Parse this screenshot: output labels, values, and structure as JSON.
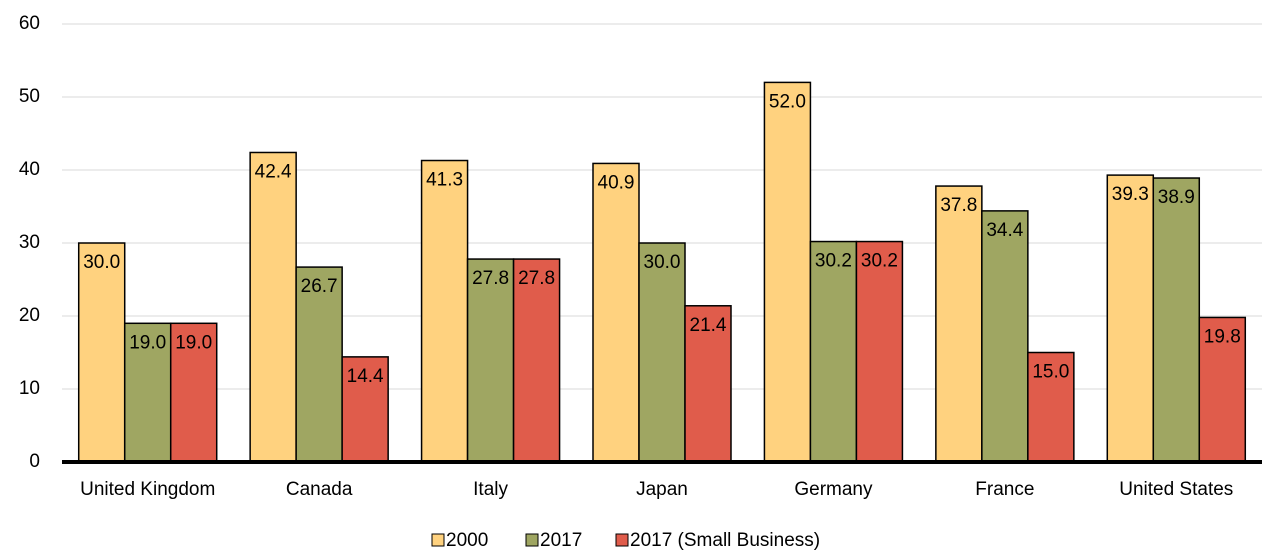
{
  "chart_data": {
    "type": "bar",
    "categories": [
      "United Kingdom",
      "Canada",
      "Italy",
      "Japan",
      "Germany",
      "France",
      "United States"
    ],
    "series": [
      {
        "name": "2000",
        "color": "#ffd27f",
        "values": [
          30.0,
          42.4,
          41.3,
          40.9,
          52.0,
          37.8,
          39.3
        ],
        "value_labels": [
          "30.0",
          "42.4",
          "41.3",
          "40.9",
          "52.0",
          "37.8",
          "39.3"
        ]
      },
      {
        "name": "2017",
        "color": "#9fa662",
        "values": [
          19.0,
          26.7,
          27.8,
          30.0,
          30.2,
          34.4,
          38.9
        ],
        "value_labels": [
          "19.0",
          "26.7",
          "27.8",
          "30.0",
          "30.2",
          "34.4",
          "38.9"
        ]
      },
      {
        "name": "2017 (Small Business)",
        "color": "#e05c4b",
        "values": [
          19.0,
          14.4,
          27.8,
          21.4,
          30.2,
          15.0,
          19.8
        ],
        "value_labels": [
          "19.0",
          "14.4",
          "27.8",
          "21.4",
          "30.2",
          "15.0",
          "19.8"
        ]
      }
    ],
    "ylim": [
      0,
      60
    ],
    "yticks": [
      0,
      10,
      20,
      30,
      40,
      50,
      60
    ],
    "grid": true,
    "legend": "bottom"
  }
}
